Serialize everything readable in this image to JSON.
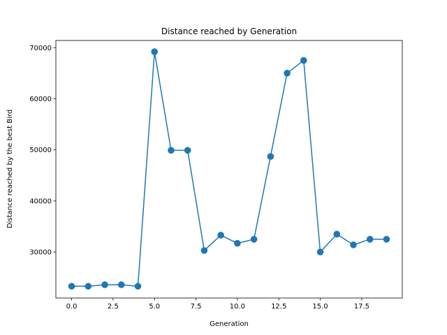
{
  "chart_data": {
    "type": "line",
    "title": "Distance reached by Generation",
    "xlabel": "Generation",
    "ylabel": "Distance reached by the best Bird",
    "xlim": [
      -0.95,
      19.95
    ],
    "ylim": [
      21000,
      71400
    ],
    "x_ticks": [
      0.0,
      2.5,
      5.0,
      7.5,
      10.0,
      12.5,
      15.0,
      17.5
    ],
    "x_tick_labels": [
      "0.0",
      "2.5",
      "5.0",
      "7.5",
      "10.0",
      "12.5",
      "15.0",
      "17.5"
    ],
    "y_ticks": [
      30000,
      40000,
      50000,
      60000,
      70000
    ],
    "y_tick_labels": [
      "30000",
      "40000",
      "50000",
      "60000",
      "70000"
    ],
    "grid": false,
    "legend": "none",
    "series": [
      {
        "color": "#1f77b4",
        "marker": "circle",
        "x": [
          0,
          1,
          2,
          3,
          4,
          5,
          6,
          7,
          8,
          9,
          10,
          11,
          12,
          13,
          14,
          15,
          16,
          17,
          18,
          19
        ],
        "values": [
          23300,
          23300,
          23600,
          23600,
          23300,
          69200,
          49900,
          49900,
          30300,
          33300,
          31700,
          32500,
          48700,
          65000,
          67500,
          30000,
          33500,
          31400,
          32500,
          32500
        ]
      }
    ]
  }
}
